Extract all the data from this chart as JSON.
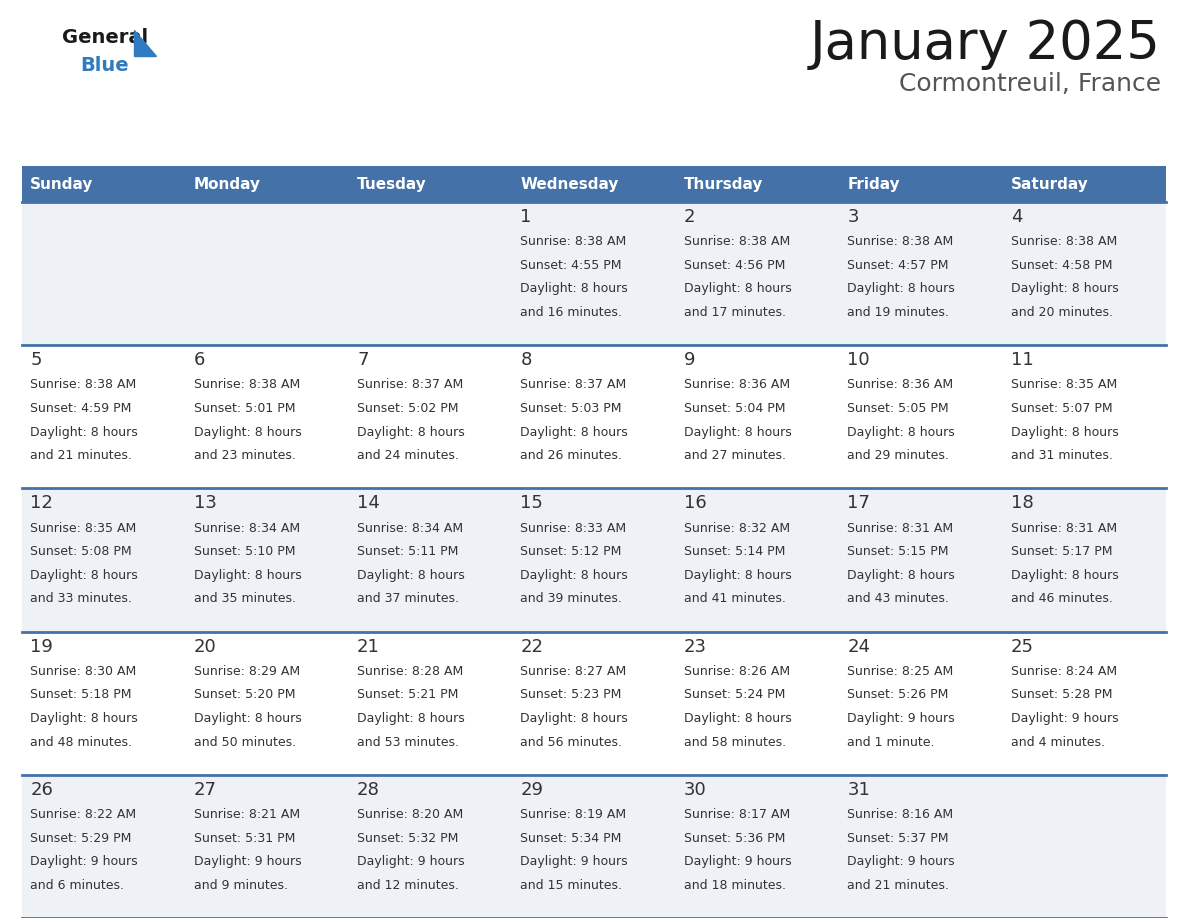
{
  "title": "January 2025",
  "subtitle": "Cormontreuil, France",
  "days_of_week": [
    "Sunday",
    "Monday",
    "Tuesday",
    "Wednesday",
    "Thursday",
    "Friday",
    "Saturday"
  ],
  "header_bg": "#4472a8",
  "header_text": "#ffffff",
  "cell_bg": "#eef2f7",
  "cell_bg_alt": "#ffffff",
  "row_line_color": "#4472a8",
  "text_color": "#333333",
  "title_color": "#1a1a1a",
  "subtitle_color": "#555555",
  "logo_general_color": "#1a1a1a",
  "logo_blue_color": "#2e7bbf",
  "calendar_data": [
    [
      {
        "day": null
      },
      {
        "day": null
      },
      {
        "day": null
      },
      {
        "day": 1,
        "sunrise": "8:38 AM",
        "sunset": "4:55 PM",
        "daylight": "8 hours",
        "daylight2": "and 16 minutes."
      },
      {
        "day": 2,
        "sunrise": "8:38 AM",
        "sunset": "4:56 PM",
        "daylight": "8 hours",
        "daylight2": "and 17 minutes."
      },
      {
        "day": 3,
        "sunrise": "8:38 AM",
        "sunset": "4:57 PM",
        "daylight": "8 hours",
        "daylight2": "and 19 minutes."
      },
      {
        "day": 4,
        "sunrise": "8:38 AM",
        "sunset": "4:58 PM",
        "daylight": "8 hours",
        "daylight2": "and 20 minutes."
      }
    ],
    [
      {
        "day": 5,
        "sunrise": "8:38 AM",
        "sunset": "4:59 PM",
        "daylight": "8 hours",
        "daylight2": "and 21 minutes."
      },
      {
        "day": 6,
        "sunrise": "8:38 AM",
        "sunset": "5:01 PM",
        "daylight": "8 hours",
        "daylight2": "and 23 minutes."
      },
      {
        "day": 7,
        "sunrise": "8:37 AM",
        "sunset": "5:02 PM",
        "daylight": "8 hours",
        "daylight2": "and 24 minutes."
      },
      {
        "day": 8,
        "sunrise": "8:37 AM",
        "sunset": "5:03 PM",
        "daylight": "8 hours",
        "daylight2": "and 26 minutes."
      },
      {
        "day": 9,
        "sunrise": "8:36 AM",
        "sunset": "5:04 PM",
        "daylight": "8 hours",
        "daylight2": "and 27 minutes."
      },
      {
        "day": 10,
        "sunrise": "8:36 AM",
        "sunset": "5:05 PM",
        "daylight": "8 hours",
        "daylight2": "and 29 minutes."
      },
      {
        "day": 11,
        "sunrise": "8:35 AM",
        "sunset": "5:07 PM",
        "daylight": "8 hours",
        "daylight2": "and 31 minutes."
      }
    ],
    [
      {
        "day": 12,
        "sunrise": "8:35 AM",
        "sunset": "5:08 PM",
        "daylight": "8 hours",
        "daylight2": "and 33 minutes."
      },
      {
        "day": 13,
        "sunrise": "8:34 AM",
        "sunset": "5:10 PM",
        "daylight": "8 hours",
        "daylight2": "and 35 minutes."
      },
      {
        "day": 14,
        "sunrise": "8:34 AM",
        "sunset": "5:11 PM",
        "daylight": "8 hours",
        "daylight2": "and 37 minutes."
      },
      {
        "day": 15,
        "sunrise": "8:33 AM",
        "sunset": "5:12 PM",
        "daylight": "8 hours",
        "daylight2": "and 39 minutes."
      },
      {
        "day": 16,
        "sunrise": "8:32 AM",
        "sunset": "5:14 PM",
        "daylight": "8 hours",
        "daylight2": "and 41 minutes."
      },
      {
        "day": 17,
        "sunrise": "8:31 AM",
        "sunset": "5:15 PM",
        "daylight": "8 hours",
        "daylight2": "and 43 minutes."
      },
      {
        "day": 18,
        "sunrise": "8:31 AM",
        "sunset": "5:17 PM",
        "daylight": "8 hours",
        "daylight2": "and 46 minutes."
      }
    ],
    [
      {
        "day": 19,
        "sunrise": "8:30 AM",
        "sunset": "5:18 PM",
        "daylight": "8 hours",
        "daylight2": "and 48 minutes."
      },
      {
        "day": 20,
        "sunrise": "8:29 AM",
        "sunset": "5:20 PM",
        "daylight": "8 hours",
        "daylight2": "and 50 minutes."
      },
      {
        "day": 21,
        "sunrise": "8:28 AM",
        "sunset": "5:21 PM",
        "daylight": "8 hours",
        "daylight2": "and 53 minutes."
      },
      {
        "day": 22,
        "sunrise": "8:27 AM",
        "sunset": "5:23 PM",
        "daylight": "8 hours",
        "daylight2": "and 56 minutes."
      },
      {
        "day": 23,
        "sunrise": "8:26 AM",
        "sunset": "5:24 PM",
        "daylight": "8 hours",
        "daylight2": "and 58 minutes."
      },
      {
        "day": 24,
        "sunrise": "8:25 AM",
        "sunset": "5:26 PM",
        "daylight": "9 hours",
        "daylight2": "and 1 minute."
      },
      {
        "day": 25,
        "sunrise": "8:24 AM",
        "sunset": "5:28 PM",
        "daylight": "9 hours",
        "daylight2": "and 4 minutes."
      }
    ],
    [
      {
        "day": 26,
        "sunrise": "8:22 AM",
        "sunset": "5:29 PM",
        "daylight": "9 hours",
        "daylight2": "and 6 minutes."
      },
      {
        "day": 27,
        "sunrise": "8:21 AM",
        "sunset": "5:31 PM",
        "daylight": "9 hours",
        "daylight2": "and 9 minutes."
      },
      {
        "day": 28,
        "sunrise": "8:20 AM",
        "sunset": "5:32 PM",
        "daylight": "9 hours",
        "daylight2": "and 12 minutes."
      },
      {
        "day": 29,
        "sunrise": "8:19 AM",
        "sunset": "5:34 PM",
        "daylight": "9 hours",
        "daylight2": "and 15 minutes."
      },
      {
        "day": 30,
        "sunrise": "8:17 AM",
        "sunset": "5:36 PM",
        "daylight": "9 hours",
        "daylight2": "and 18 minutes."
      },
      {
        "day": 31,
        "sunrise": "8:16 AM",
        "sunset": "5:37 PM",
        "daylight": "9 hours",
        "daylight2": "and 21 minutes."
      },
      {
        "day": null
      }
    ]
  ]
}
